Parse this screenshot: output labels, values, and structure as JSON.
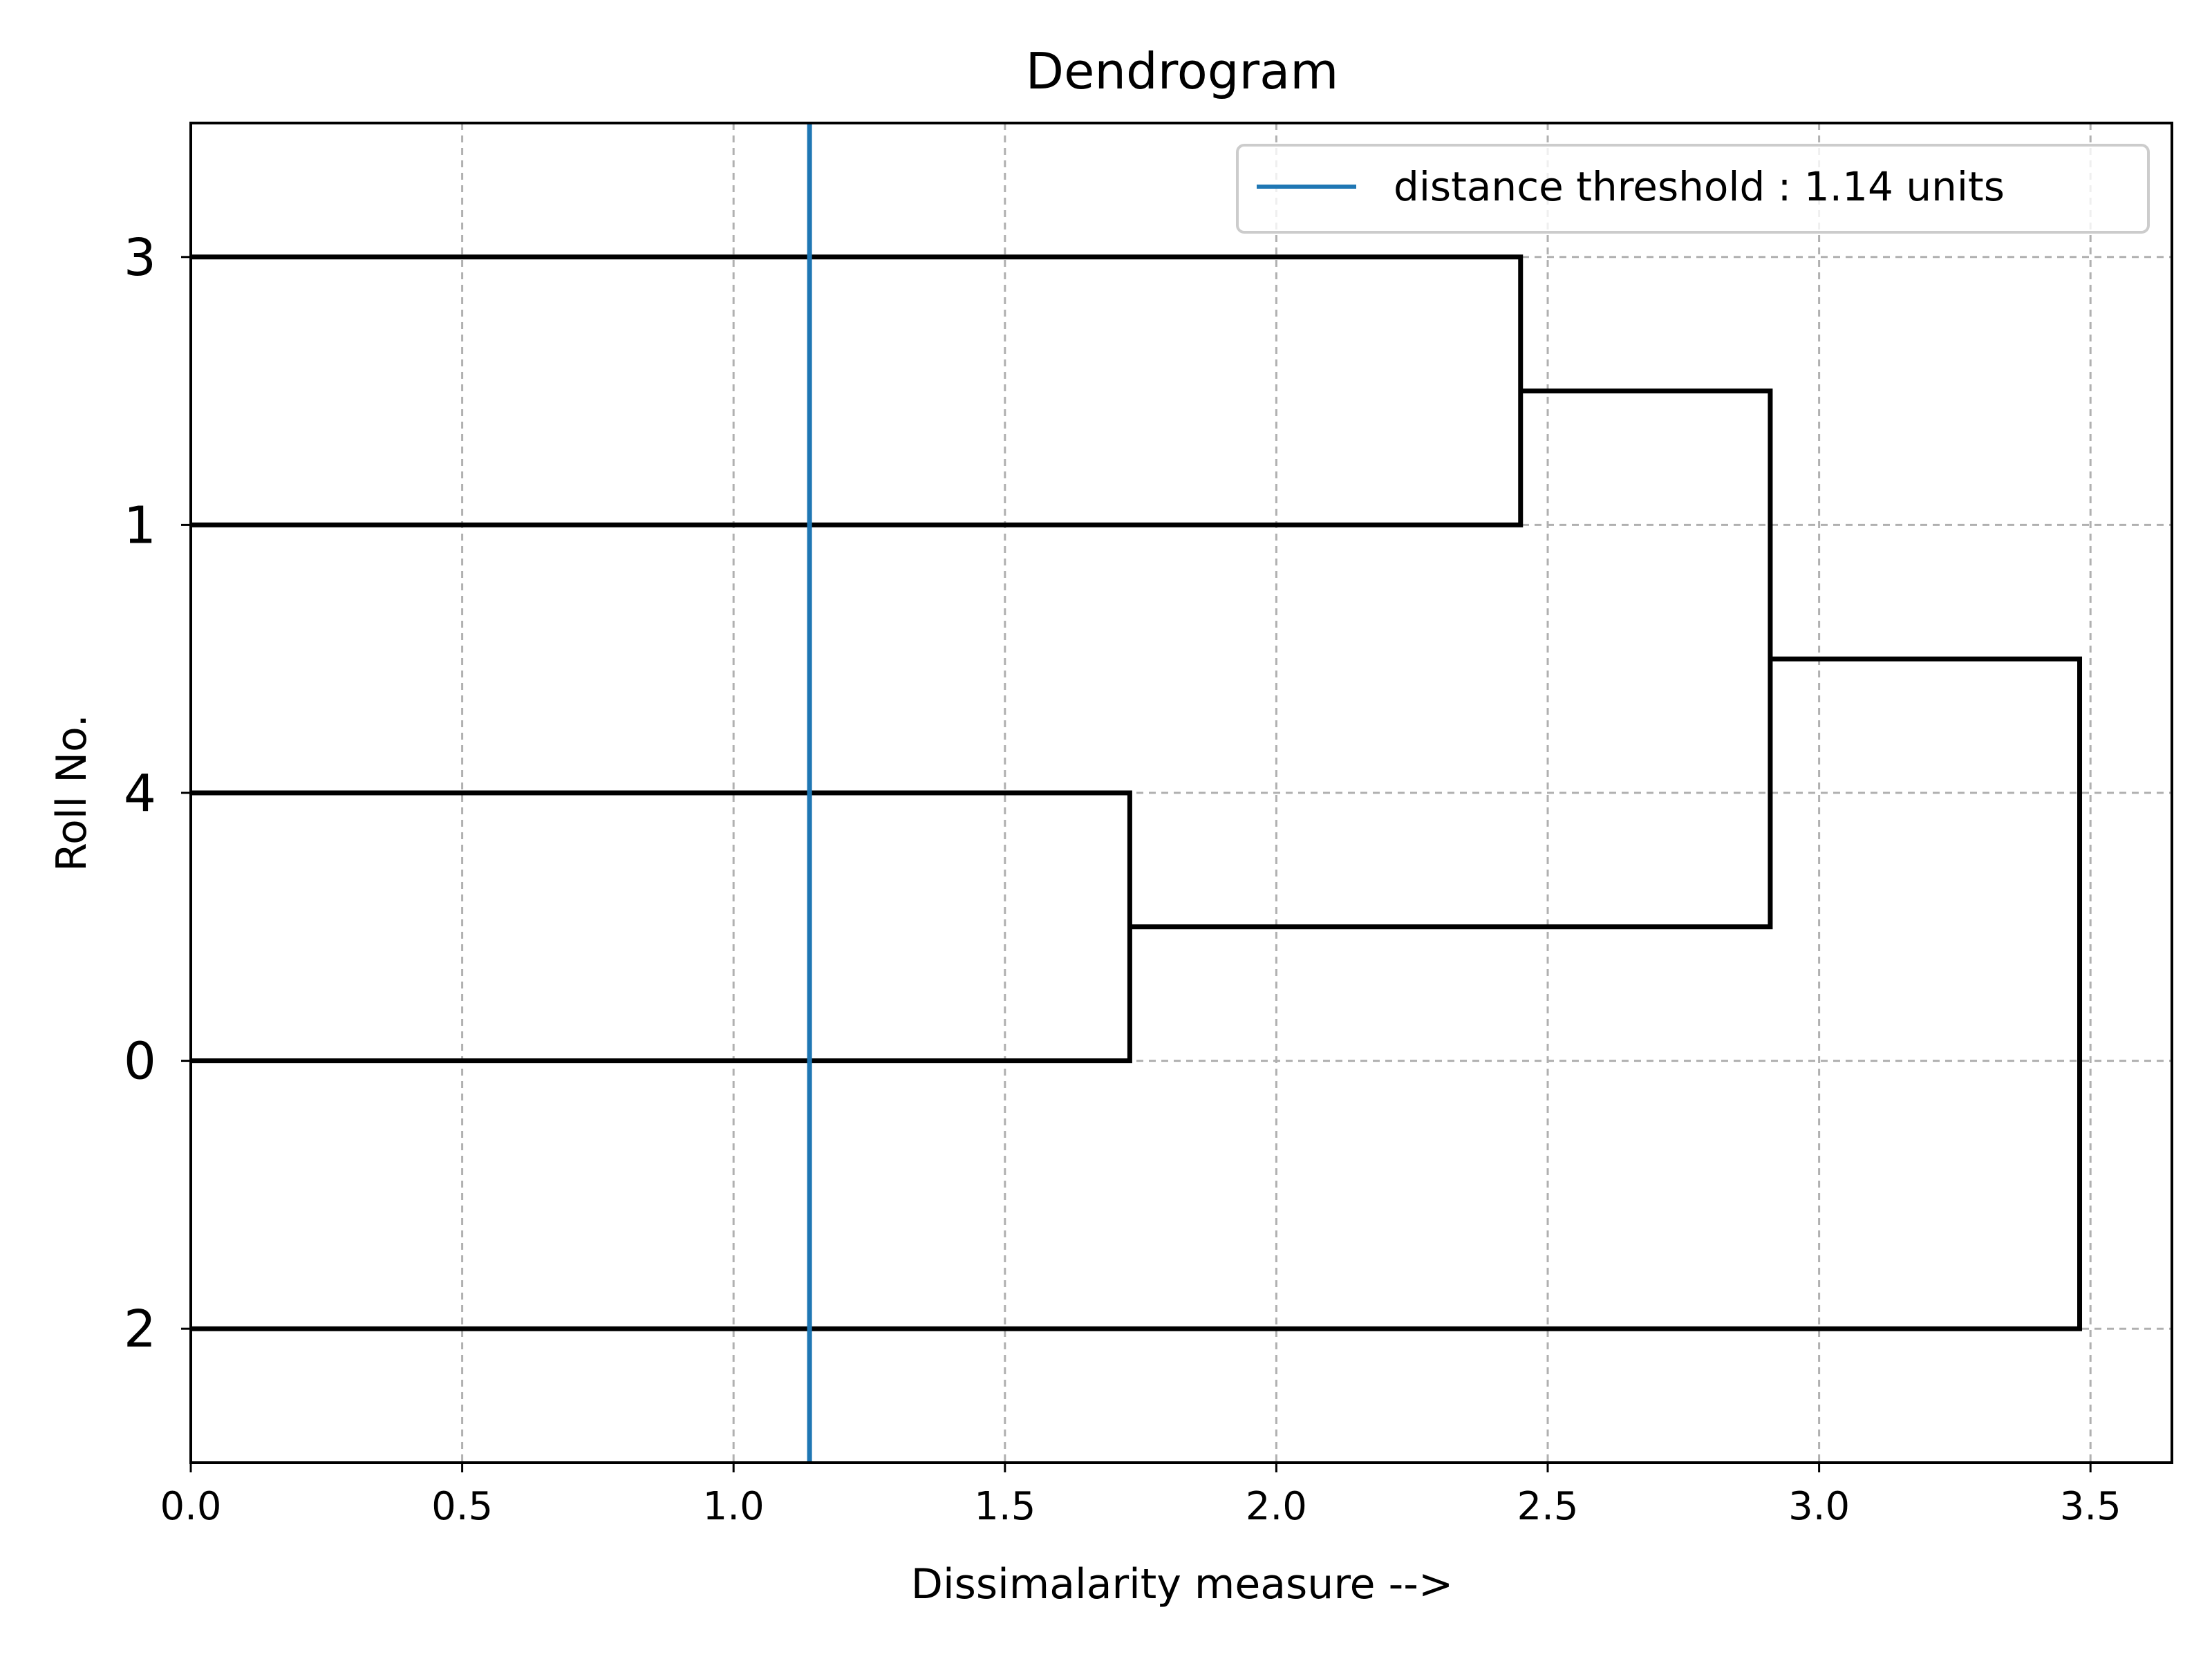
{
  "chart_data": {
    "type": "dendrogram",
    "orientation": "horizontal",
    "title": "Dendrogram",
    "xlabel": "Dissimalarity measure -->",
    "ylabel": "Roll No.",
    "xlim": [
      0,
      3.65
    ],
    "xticks": [
      0.0,
      0.5,
      1.0,
      1.5,
      2.0,
      2.5,
      3.0,
      3.5
    ],
    "xtick_labels": [
      "0.0",
      "0.5",
      "1.0",
      "1.5",
      "2.0",
      "2.5",
      "3.0",
      "3.5"
    ],
    "leaves": [
      "3",
      "1",
      "4",
      "0",
      "2"
    ],
    "merges": [
      {
        "left": "3",
        "right": "1",
        "distance": 2.45
      },
      {
        "left": "4",
        "right": "0",
        "distance": 1.73
      },
      {
        "left": "3+1",
        "right": "4+0",
        "distance": 2.91
      },
      {
        "left": "3+1+4+0",
        "right": "2",
        "distance": 3.48
      }
    ],
    "threshold": {
      "value": 1.14,
      "label": "distance threshold : 1.14 units",
      "color": "#1f77b4"
    },
    "link_color": "#000000",
    "grid": true,
    "legend_position": "top-right"
  }
}
